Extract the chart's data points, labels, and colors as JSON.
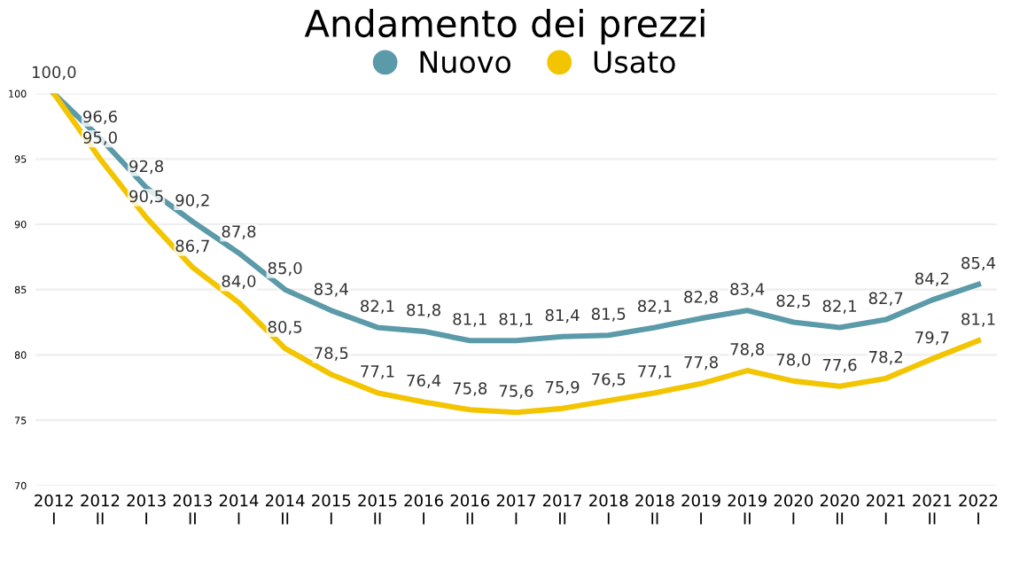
{
  "chart_data": {
    "type": "line",
    "title": "Andamento dei prezzi",
    "categories": [
      "2012\nI",
      "2012\nII",
      "2013\nI",
      "2013\nII",
      "2014\nI",
      "2014\nII",
      "2015\nI",
      "2015\nII",
      "2016\nI",
      "2016\nII",
      "2017\nI",
      "2017\nII",
      "2018\nI",
      "2018\nII",
      "2019\nI",
      "2019\nII",
      "2020\nI",
      "2020\nII",
      "2021\nI",
      "2021\nII",
      "2022\nI"
    ],
    "series": [
      {
        "name": "Nuovo",
        "color": "#5b9aa9",
        "values": [
          100.0,
          96.6,
          92.8,
          90.2,
          87.8,
          85.0,
          83.4,
          82.1,
          81.8,
          81.1,
          81.1,
          81.4,
          81.5,
          82.1,
          82.8,
          83.4,
          82.5,
          82.1,
          82.7,
          84.2,
          85.4
        ],
        "value_labels": [
          "100,0",
          "96,6",
          "92,8",
          "90,2",
          "87,8",
          "85,0",
          "83,4",
          "82,1",
          "81,8",
          "81,1",
          "81,1",
          "81,4",
          "81,5",
          "82,1",
          "82,8",
          "83,4",
          "82,5",
          "82,1",
          "82,7",
          "84,2",
          "85,4"
        ]
      },
      {
        "name": "Usato",
        "color": "#f2c500",
        "values": [
          100.0,
          95.0,
          90.5,
          86.7,
          84.0,
          80.5,
          78.5,
          77.1,
          76.4,
          75.8,
          75.6,
          75.9,
          76.5,
          77.1,
          77.8,
          78.8,
          78.0,
          77.6,
          78.2,
          79.7,
          81.1
        ],
        "value_labels": [
          null,
          "95,0",
          "90,5",
          "86,7",
          "84,0",
          "80,5",
          "78,5",
          "77,1",
          "76,4",
          "75,8",
          "75,6",
          "75,9",
          "76,5",
          "77,1",
          "77,8",
          "78,8",
          "78,0",
          "77,6",
          "78,2",
          "79,7",
          "81,1"
        ]
      }
    ],
    "ylim": [
      70,
      100
    ],
    "yticks": [
      70,
      75,
      80,
      85,
      90,
      95,
      100
    ],
    "grid": "y",
    "legend": "top",
    "marker": "none",
    "line_style": "solid"
  }
}
